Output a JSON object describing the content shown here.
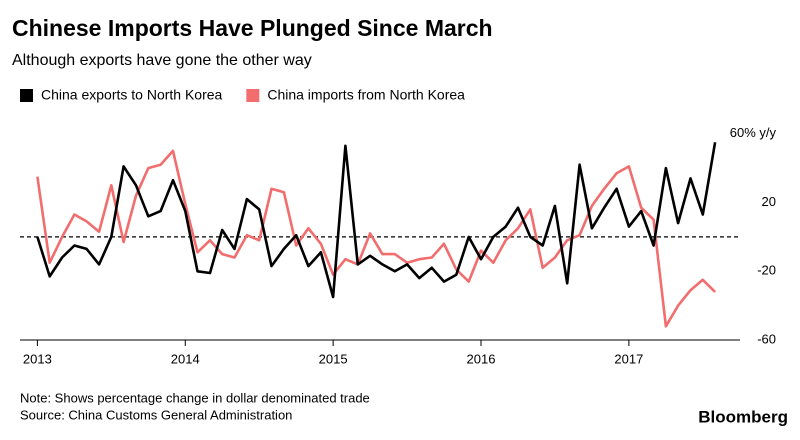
{
  "chart_data": {
    "type": "line",
    "title": "Chinese Imports Have Plunged Since March",
    "subtitle": "Although exports have gone the other way",
    "note": "Note: Shows percentage change in dollar denominated trade",
    "source": "Source: China Customs General Administration",
    "brand": "Bloomberg",
    "x": [
      2013,
      2013.083,
      2013.167,
      2013.25,
      2013.333,
      2013.417,
      2013.5,
      2013.583,
      2013.667,
      2013.75,
      2013.833,
      2013.917,
      2014,
      2014.083,
      2014.167,
      2014.25,
      2014.333,
      2014.417,
      2014.5,
      2014.583,
      2014.667,
      2014.75,
      2014.833,
      2014.917,
      2015,
      2015.083,
      2015.167,
      2015.25,
      2015.333,
      2015.417,
      2015.5,
      2015.583,
      2015.667,
      2015.75,
      2015.833,
      2015.917,
      2016,
      2016.083,
      2016.167,
      2016.25,
      2016.333,
      2016.417,
      2016.5,
      2016.583,
      2016.667,
      2016.75,
      2016.833,
      2016.917,
      2017,
      2017.083,
      2017.167,
      2017.25,
      2017.333,
      2017.417,
      2017.5,
      2017.583
    ],
    "series": [
      {
        "name": "China exports to North Korea",
        "color": "#000000",
        "values": [
          0,
          -23,
          -12,
          -5,
          -7,
          -16,
          0,
          41,
          30,
          12,
          15,
          33,
          15,
          -20,
          -21,
          4,
          -7,
          22,
          16,
          -17,
          -7,
          1,
          -17,
          -9,
          -35,
          53,
          -16,
          -11,
          -16,
          -20,
          -16,
          -24,
          -18,
          -26,
          -22,
          0,
          -13,
          0,
          6,
          17,
          0,
          -5,
          18,
          -27,
          42,
          5,
          17,
          28,
          6,
          15,
          -5,
          40,
          8,
          34,
          13,
          55
        ]
      },
      {
        "name": "China imports from North Korea",
        "color": "#f26d6d",
        "values": [
          35,
          -15,
          0,
          13,
          9,
          3,
          30,
          -3,
          24,
          40,
          42,
          50,
          19,
          -9,
          -2,
          -10,
          -12,
          1,
          -2,
          28,
          26,
          -5,
          5,
          -4,
          -22,
          -13,
          -16,
          2,
          -10,
          -10,
          -15,
          -13,
          -12,
          -4,
          -19,
          -26,
          -8,
          -15,
          -2,
          5,
          16,
          -18,
          -12,
          -2,
          1,
          18,
          28,
          37,
          41,
          17,
          10,
          -52,
          -40,
          -31,
          -25,
          -32
        ]
      }
    ],
    "xlim": [
      2012.95,
      2017.65
    ],
    "xticks": [
      2013,
      2014,
      2015,
      2016,
      2017
    ],
    "ylim": [
      -60,
      68
    ],
    "yticks": [
      -60,
      -20,
      20,
      {
        "value": 60,
        "label": "60% y/y"
      }
    ],
    "reference_line": 0
  }
}
